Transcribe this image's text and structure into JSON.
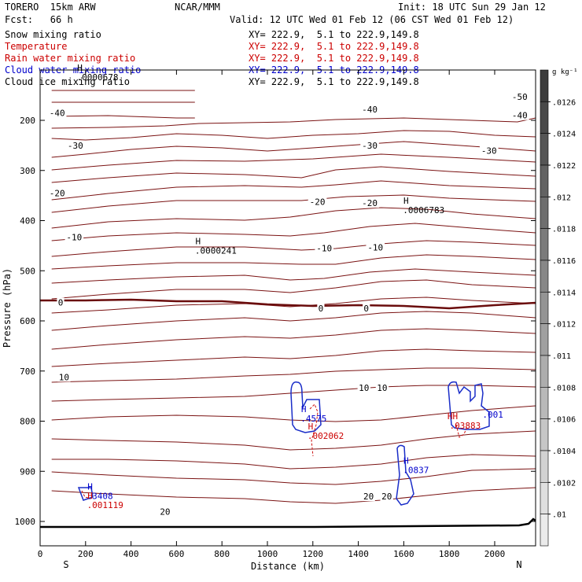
{
  "header": {
    "model": "TORERO  15km ARW",
    "center": "NCAR/MMM",
    "init": "Init: 18 UTC Sun 29 Jan 12",
    "fcst": "Fcst:   66 h",
    "valid": "Valid: 12 UTC Wed 01 Feb 12 (06 CST Wed 01 Feb 12)"
  },
  "fields": [
    {
      "name": "Snow mixing ratio",
      "xy": "XY= 222.9,  5.1 to 222.9,149.8",
      "color": "#000000"
    },
    {
      "name": "Temperature",
      "xy": "XY= 222.9,  5.1 to 222.9,149.8",
      "color": "#cc0000"
    },
    {
      "name": "Rain water mixing ratio",
      "xy": "XY= 222.9,  5.1 to 222.9,149.8",
      "color": "#cc0000"
    },
    {
      "name": "Cloud water mixing ratio",
      "xy": "XY= 222.9,  5.1 to 222.9,149.8",
      "color": "#0000cc"
    },
    {
      "name": "Cloud ice mixing ratio",
      "xy": "XY= 222.9,  5.1 to 222.9,149.8",
      "color": "#000000"
    }
  ],
  "colorbar": {
    "unit": "g kg⁻¹",
    "labels": [
      ".0126",
      ".0124",
      ".0122",
      ".012",
      ".0118",
      ".0116",
      ".0114",
      ".0112",
      ".011",
      ".0108",
      ".0106",
      ".0104",
      ".0102",
      ".01"
    ]
  },
  "chart_data": {
    "type": "contour",
    "xlabel": "Distance (km)",
    "ylabel": "Pressure (hPa)",
    "xlim": [
      0,
      2180
    ],
    "ylim_hpa": [
      1050,
      100
    ],
    "x_ticks": [
      0,
      200,
      400,
      600,
      800,
      1000,
      1200,
      1400,
      1600,
      1800,
      2000
    ],
    "y_ticks": [
      200,
      300,
      400,
      500,
      600,
      700,
      800,
      900,
      1000
    ],
    "x_end_labels": [
      "S",
      "N"
    ],
    "temperature_contour_labels": [
      {
        "text": "-50",
        "x": 2110,
        "p": 153
      },
      {
        "text": "-40",
        "x": 75,
        "p": 185
      },
      {
        "text": "-40",
        "x": 1450,
        "p": 178
      },
      {
        "text": "-40",
        "x": 2110,
        "p": 190
      },
      {
        "text": "-30",
        "x": 155,
        "p": 250
      },
      {
        "text": "-30",
        "x": 1450,
        "p": 250
      },
      {
        "text": "-30",
        "x": 1975,
        "p": 260
      },
      {
        "text": "-20",
        "x": 75,
        "p": 345
      },
      {
        "text": "-20",
        "x": 1220,
        "p": 362
      },
      {
        "text": "-20",
        "x": 1450,
        "p": 365
      },
      {
        "text": "-10",
        "x": 150,
        "p": 433
      },
      {
        "text": "-10",
        "x": 1250,
        "p": 455
      },
      {
        "text": "-10",
        "x": 1475,
        "p": 453
      },
      {
        "text": "0",
        "x": 90,
        "p": 563
      },
      {
        "text": "0",
        "x": 1235,
        "p": 575
      },
      {
        "text": "0",
        "x": 1435,
        "p": 575
      },
      {
        "text": "10",
        "x": 105,
        "p": 712
      },
      {
        "text": "10",
        "x": 1425,
        "p": 733
      },
      {
        "text": "10",
        "x": 1505,
        "p": 733
      },
      {
        "text": "20",
        "x": 550,
        "p": 980
      },
      {
        "text": "20",
        "x": 1445,
        "p": 950
      },
      {
        "text": "20",
        "x": 1525,
        "p": 950
      }
    ],
    "extrema": [
      {
        "field": "Snow mixing ratio",
        "mark": "H",
        "value": ".0000678",
        "x": 175,
        "p": 117
      },
      {
        "field": "Snow mixing ratio",
        "mark": "H",
        "value": ".0000241",
        "x": 695,
        "p": 463
      },
      {
        "field": "Snow mixing ratio",
        "mark": "H",
        "value": ".0006783",
        "x": 1610,
        "p": 382
      },
      {
        "field": "Cloud water mixing ratio",
        "mark": "H",
        "value": ".4575",
        "x": 1160,
        "p": 798
      },
      {
        "field": "Rain water mixing ratio",
        "mark": "H",
        "value": ".002062",
        "x": 1190,
        "p": 832
      },
      {
        "field": "Cloud water mixing ratio",
        "mark": "H",
        "value": ".0837",
        "x": 1610,
        "p": 900
      },
      {
        "field": "Cloud water mixing ratio",
        "mark": "H",
        "value": ".3408",
        "x": 220,
        "p": 952
      },
      {
        "field": "Rain water mixing ratio",
        "mark": "H",
        "value": ".001119",
        "x": 220,
        "p": 970
      },
      {
        "field": "Rain water mixing ratio",
        "mark": "HH",
        "value": ".03883",
        "x": 1815,
        "p": 812
      },
      {
        "field": "Cloud water mixing ratio",
        "mark": "",
        "value": ".001",
        "x": 1960,
        "p": 790
      }
    ]
  }
}
